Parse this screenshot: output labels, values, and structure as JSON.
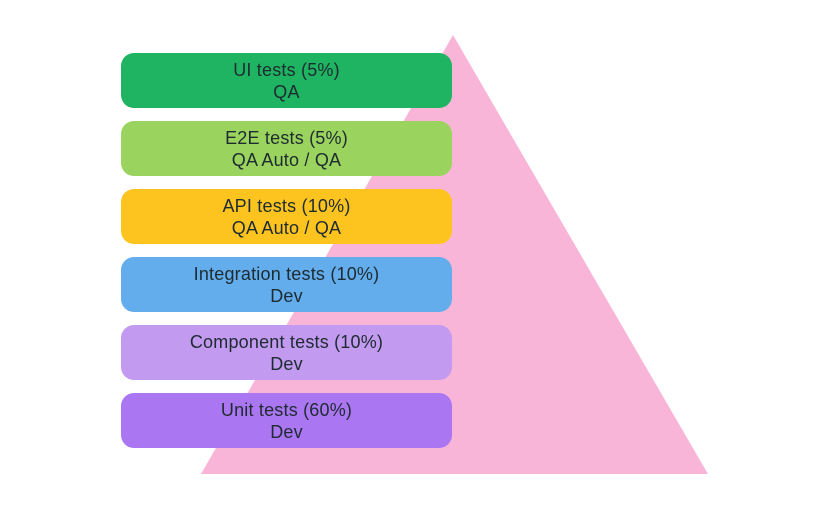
{
  "canvas": {
    "background": "#ffffff"
  },
  "pyramid": {
    "triangle_color": "#f9b5d8",
    "text_color": "#1e2b31",
    "layers": [
      {
        "label": "UI tests (5%)",
        "owner": "QA",
        "color": "#1eb461"
      },
      {
        "label": "E2E tests (5%)",
        "owner": "QA Auto / QA",
        "color": "#9ad35e"
      },
      {
        "label": "API tests (10%)",
        "owner": "QA Auto / QA",
        "color": "#fdc41f"
      },
      {
        "label": "Integration tests (10%)",
        "owner": "Dev",
        "color": "#63adec"
      },
      {
        "label": "Component tests (10%)",
        "owner": "Dev",
        "color": "#c29af0"
      },
      {
        "label": "Unit tests (60%)",
        "owner": "Dev",
        "color": "#ab76f1"
      }
    ]
  }
}
